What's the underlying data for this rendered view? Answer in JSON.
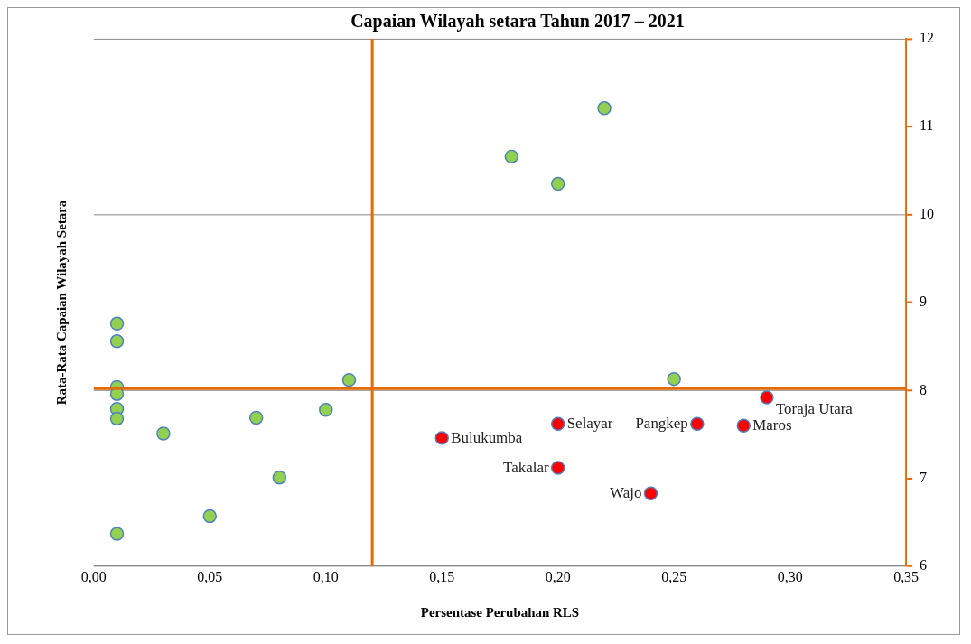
{
  "chart_data": {
    "type": "scatter",
    "title": "Capaian Wilayah setara Tahun 2017 – 2021",
    "xlabel": "Persentase Perubahan RLS",
    "ylabel": "Rata-Rata Capaian Wilayah Setara",
    "series": [
      {
        "color": "#92d050",
        "x": [
          0.01,
          0.01,
          0.01,
          0.01,
          0.01,
          0.01,
          0.01,
          0.03,
          0.05,
          0.07,
          0.08,
          0.1,
          0.11,
          0.18,
          0.2,
          0.22,
          0.25
        ],
        "values": [
          8.76,
          8.56,
          8.04,
          7.96,
          7.79,
          7.68,
          6.37,
          7.51,
          6.57,
          7.69,
          7.01,
          7.78,
          8.12,
          10.66,
          10.35,
          11.21,
          8.13
        ]
      },
      {
        "color": "#ff0000",
        "x": [
          0.15,
          0.2,
          0.2,
          0.24,
          0.26,
          0.28,
          0.29
        ],
        "values": [
          7.46,
          7.62,
          7.12,
          6.83,
          7.62,
          7.6,
          7.92
        ]
      }
    ],
    "xlim": [
      0,
      0.35
    ],
    "xticks": [
      {
        "value": 0,
        "label": "0,00"
      },
      {
        "value": 0.05,
        "label": "0,05"
      },
      {
        "value": 0.1,
        "label": "0,10"
      },
      {
        "value": 0.15,
        "label": "0,15"
      },
      {
        "value": 0.2,
        "label": "0,20"
      },
      {
        "value": 0.25,
        "label": "0,25"
      },
      {
        "value": 0.3,
        "label": "0,30"
      },
      {
        "value": 0.35,
        "label": "0,35"
      }
    ],
    "ylim": [
      6,
      12
    ],
    "yticks": [
      6,
      7,
      8,
      9,
      10,
      11,
      12
    ],
    "ref_lines": [
      {
        "axis": "x",
        "value": 0.12,
        "color": "#e36c09"
      },
      {
        "axis": "y",
        "value": 8.02,
        "color": "#e36c09"
      }
    ],
    "annotations": [
      {
        "text": "Bulukumba",
        "x": 0.15,
        "y": 7.46
      },
      {
        "text": "Selayar",
        "x": 0.2,
        "y": 7.62
      },
      {
        "text": "Takalar",
        "x": 0.2,
        "y": 7.12
      },
      {
        "text": "Wajo",
        "x": 0.24,
        "y": 6.83
      },
      {
        "text": "Pangkep",
        "x": 0.26,
        "y": 7.62
      },
      {
        "text": "Maros",
        "x": 0.28,
        "y": 7.6
      },
      {
        "text": "Toraja Utara",
        "x": 0.29,
        "y": 7.92
      }
    ],
    "grid": "y",
    "legend": false,
    "marker": "circle"
  }
}
